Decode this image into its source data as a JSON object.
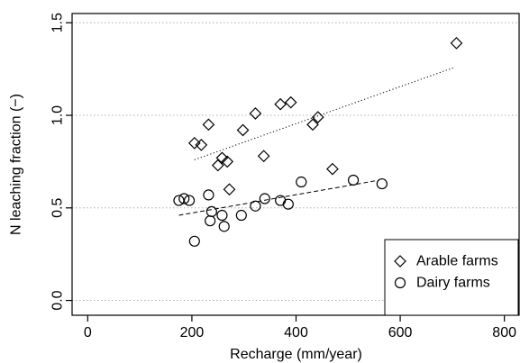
{
  "chart_data": {
    "type": "scatter",
    "xlabel": "Recharge (mm/year)",
    "ylabel": "N leaching fraction (−)",
    "xlim": [
      -30,
      830
    ],
    "ylim": [
      -0.08,
      1.55
    ],
    "xticks": [
      "0",
      "200",
      "400",
      "600",
      "800"
    ],
    "xtick_values": [
      0,
      200,
      400,
      600,
      800
    ],
    "yticks": [
      "0.0",
      "0.5",
      "1.0",
      "1.5"
    ],
    "ytick_values": [
      0.0,
      0.5,
      1.0,
      1.5
    ],
    "grid": "horizontal dotted",
    "legend_position": "bottom-right",
    "series": [
      {
        "name": "Arable farms",
        "marker": "diamond",
        "color": "#000000",
        "points": [
          [
            205,
            0.85
          ],
          [
            218,
            0.84
          ],
          [
            232,
            0.95
          ],
          [
            250,
            0.73
          ],
          [
            258,
            0.77
          ],
          [
            268,
            0.75
          ],
          [
            272,
            0.6
          ],
          [
            298,
            0.92
          ],
          [
            322,
            1.01
          ],
          [
            338,
            0.78
          ],
          [
            370,
            1.06
          ],
          [
            390,
            1.07
          ],
          [
            432,
            0.95
          ],
          [
            442,
            0.99
          ],
          [
            470,
            0.71
          ],
          [
            708,
            1.39
          ]
        ],
        "trend": {
          "style": "dotted",
          "from": [
            205,
            0.76
          ],
          "to": [
            705,
            1.26
          ]
        }
      },
      {
        "name": "Dairy farms",
        "marker": "circle",
        "color": "#000000",
        "points": [
          [
            175,
            0.54
          ],
          [
            185,
            0.55
          ],
          [
            195,
            0.54
          ],
          [
            205,
            0.32
          ],
          [
            232,
            0.57
          ],
          [
            235,
            0.43
          ],
          [
            238,
            0.48
          ],
          [
            258,
            0.46
          ],
          [
            262,
            0.4
          ],
          [
            295,
            0.46
          ],
          [
            322,
            0.51
          ],
          [
            340,
            0.55
          ],
          [
            370,
            0.54
          ],
          [
            385,
            0.52
          ],
          [
            410,
            0.64
          ],
          [
            510,
            0.65
          ],
          [
            565,
            0.63
          ]
        ],
        "trend": {
          "style": "dashed",
          "from": [
            175,
            0.46
          ],
          "to": [
            560,
            0.65
          ]
        }
      }
    ]
  }
}
